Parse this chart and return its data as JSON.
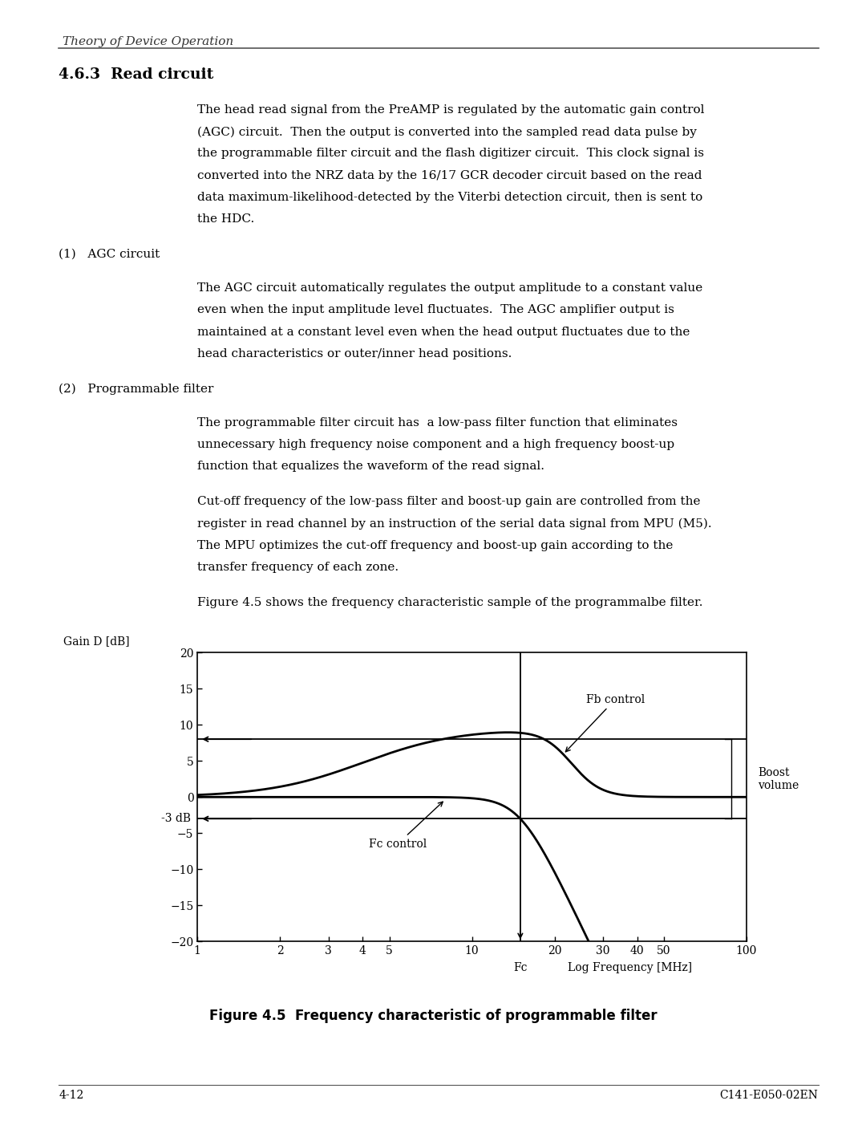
{
  "page_title": "Theory of Device Operation",
  "section_title": "4.6.3  Read circuit",
  "footer_left": "4-12",
  "footer_right": "C141-E050-02EN",
  "ylabel": "Gain D [dB]",
  "xlabel": "Log Frequency [MHz]",
  "fc_label": "Fc",
  "yticks": [
    20,
    15,
    10,
    5,
    0,
    -5,
    -10,
    -15,
    -20
  ],
  "ytick_labels": [
    "20",
    "15",
    "10",
    "5",
    "0",
    "−5",
    "−10",
    "−15",
    "−20"
  ],
  "xtick_labels": [
    "1",
    "2",
    "3",
    "4",
    "5",
    "10",
    "20",
    "30",
    "40",
    "50",
    "100"
  ],
  "xtick_values": [
    1,
    2,
    3,
    4,
    5,
    10,
    20,
    30,
    40,
    50,
    100
  ],
  "minus3db_label": "-3 dB",
  "boost_label": "Boost\nvolume",
  "fc_control_label": "Fc control",
  "fb_control_label": "Fb control",
  "boost_level": 8.0,
  "minus3_level": -3.0,
  "fc_x": 15.0,
  "fig_caption": "Figure 4.5  Frequency characteristic of programmable filter",
  "background_color": "#ffffff",
  "para1_lines": [
    "The head read signal from the PreAMP is regulated by the automatic gain control",
    "(AGC) circuit.  Then the output is converted into the sampled read data pulse by",
    "the programmable filter circuit and the flash digitizer circuit.  This clock signal is",
    "converted into the NRZ data by the 16/17 GCR decoder circuit based on the read",
    "data maximum-likelihood-detected by the Viterbi detection circuit, then is sent to",
    "the HDC."
  ],
  "sub1_title": "(1)   AGC circuit",
  "para2_lines": [
    "The AGC circuit automatically regulates the output amplitude to a constant value",
    "even when the input amplitude level fluctuates.  The AGC amplifier output is",
    "maintained at a constant level even when the head output fluctuates due to the",
    "head characteristics or outer/inner head positions."
  ],
  "sub2_title": "(2)   Programmable filter",
  "para3_lines": [
    "The programmable filter circuit has  a low-pass filter function that eliminates",
    "unnecessary high frequency noise component and a high frequency boost-up",
    "function that equalizes the waveform of the read signal."
  ],
  "para4_lines": [
    "Cut-off frequency of the low-pass filter and boost-up gain are controlled from the",
    "register in read channel by an instruction of the serial data signal from MPU (M5).",
    "The MPU optimizes the cut-off frequency and boost-up gain according to the",
    "transfer frequency of each zone."
  ],
  "para5": "Figure 4.5 shows the frequency characteristic sample of the programmalbe filter."
}
